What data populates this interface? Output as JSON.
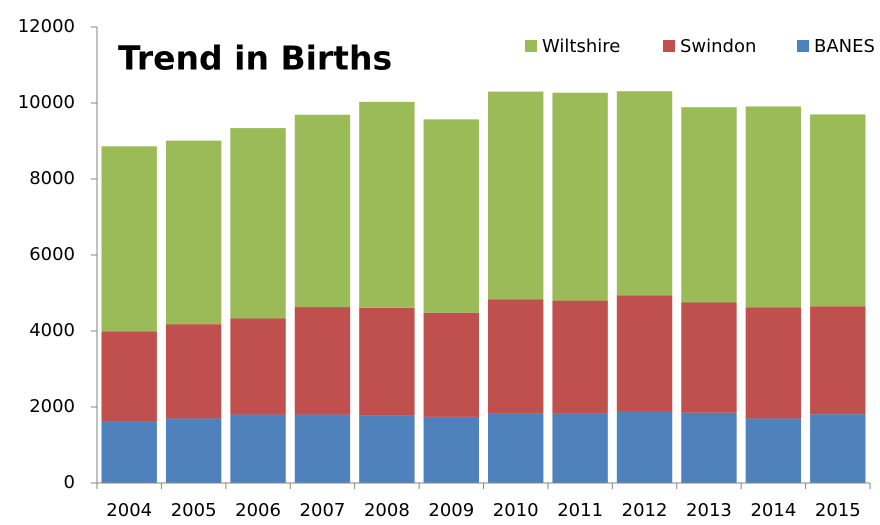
{
  "chart_data": {
    "type": "stacked_bar",
    "title": "Trend in Births",
    "categories": [
      "2004",
      "2005",
      "2006",
      "2007",
      "2008",
      "2009",
      "2010",
      "2011",
      "2012",
      "2013",
      "2014",
      "2015"
    ],
    "series": [
      {
        "name": "BANES",
        "color": "#4f81bd",
        "values": [
          1620,
          1700,
          1800,
          1800,
          1770,
          1740,
          1840,
          1820,
          1870,
          1850,
          1700,
          1810
        ]
      },
      {
        "name": "Swindon",
        "color": "#c0504d",
        "values": [
          2370,
          2480,
          2530,
          2830,
          2840,
          2740,
          2990,
          2980,
          3070,
          2900,
          2920,
          2840
        ]
      },
      {
        "name": "Wiltshire",
        "color": "#9bbb59",
        "values": [
          4870,
          4830,
          5010,
          5060,
          5420,
          5090,
          5470,
          5470,
          5370,
          5140,
          5290,
          5050
        ]
      }
    ],
    "ylim": [
      0,
      12000
    ],
    "yticks": [
      0,
      2000,
      4000,
      6000,
      8000,
      10000,
      12000
    ],
    "grid": false,
    "legend": "top-right"
  }
}
